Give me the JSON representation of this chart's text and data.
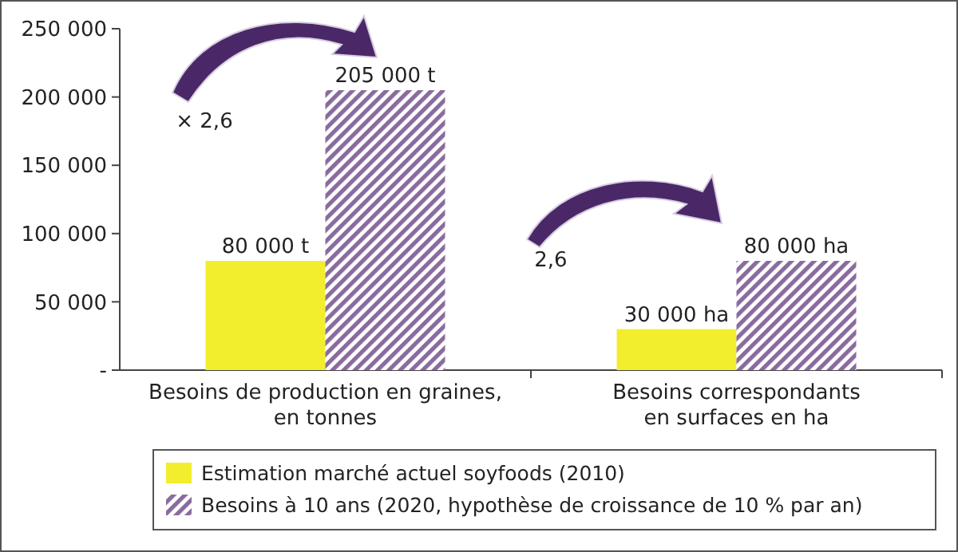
{
  "chart_data": {
    "type": "bar",
    "categories": [
      "Besoins de production en graines,\nen tonnes",
      "Besoins correspondants\nen surfaces en ha"
    ],
    "series": [
      {
        "name": "Estimation marché actuel soyfoods (2010)",
        "color": "#f2ee2e",
        "values": [
          80000,
          30000
        ],
        "value_labels": [
          "80 000 t",
          "30 000 ha"
        ]
      },
      {
        "name": "Besoins à 10 ans (2020, hypothèse de croissance de 10 % par an)",
        "color": "#8a6b9e",
        "values": [
          205000,
          80000
        ],
        "value_labels": [
          "205 000 t",
          "80 000 ha"
        ]
      }
    ],
    "ylim": [
      0,
      250000
    ],
    "yticks": [
      {
        "value": 0,
        "label": "-"
      },
      {
        "value": 50000,
        "label": "50 000"
      },
      {
        "value": 100000,
        "label": "100 000"
      },
      {
        "value": 150000,
        "label": "150 000"
      },
      {
        "value": 200000,
        "label": "200 000"
      },
      {
        "value": 250000,
        "label": "250 000"
      }
    ],
    "grid": false,
    "legend": "bottom",
    "annotations": [
      "× 2,6",
      "2,6"
    ]
  }
}
